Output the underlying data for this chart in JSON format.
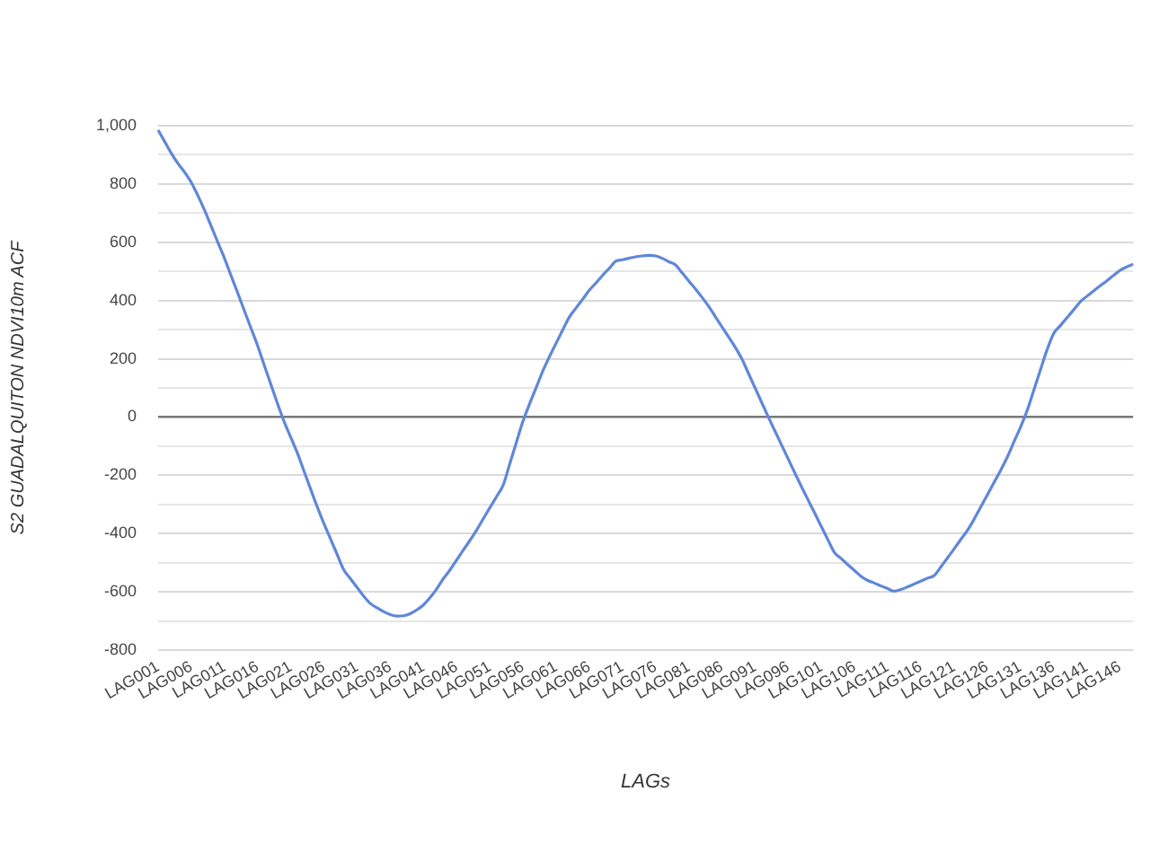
{
  "chart_data": {
    "type": "line",
    "xlabel": "LAGs",
    "ylabel": "S2 GUADALQUITON NDVI10m ACF",
    "categories": [
      "LAG001",
      null,
      null,
      null,
      null,
      "LAG006",
      null,
      null,
      null,
      null,
      "LAG011",
      null,
      null,
      null,
      null,
      "LAG016",
      null,
      null,
      null,
      null,
      "LAG021",
      null,
      null,
      null,
      null,
      "LAG026",
      null,
      null,
      null,
      null,
      "LAG031",
      null,
      null,
      null,
      null,
      "LAG036",
      null,
      null,
      null,
      null,
      "LAG041",
      null,
      null,
      null,
      null,
      "LAG046",
      null,
      null,
      null,
      null,
      "LAG051",
      null,
      null,
      null,
      null,
      "LAG056",
      null,
      null,
      null,
      null,
      "LAG061",
      null,
      null,
      null,
      null,
      "LAG066",
      null,
      null,
      null,
      null,
      "LAG071",
      null,
      null,
      null,
      null,
      "LAG076",
      null,
      null,
      null,
      null,
      "LAG081",
      null,
      null,
      null,
      null,
      "LAG086",
      null,
      null,
      null,
      null,
      "LAG091",
      null,
      null,
      null,
      null,
      "LAG096",
      null,
      null,
      null,
      null,
      "LAG101",
      null,
      null,
      null,
      null,
      "LAG106",
      null,
      null,
      null,
      null,
      "LAG111",
      null,
      null,
      null,
      null,
      "LAG116",
      null,
      null,
      null,
      null,
      "LAG121",
      null,
      null,
      null,
      null,
      "LAG126",
      null,
      null,
      null,
      null,
      "LAG131",
      null,
      null,
      null,
      null,
      "LAG136",
      null,
      null,
      null,
      null,
      "LAG141",
      null,
      null,
      null,
      null,
      "LAG146",
      null,
      null
    ],
    "series": [
      {
        "color": "#5f87d9",
        "values": [
          985,
          945,
          905,
          870,
          840,
          805,
          760,
          710,
          655,
          600,
          545,
          485,
          426,
          365,
          305,
          245,
          178,
          112,
          46,
          -16,
          -70,
          -124,
          -186,
          -248,
          -309,
          -366,
          -419,
          -472,
          -525,
          -555,
          -585,
          -615,
          -640,
          -655,
          -668,
          -678,
          -683,
          -682,
          -675,
          -662,
          -645,
          -620,
          -590,
          -555,
          -525,
          -491,
          -457,
          -424,
          -389,
          -350,
          -312,
          -274,
          -235,
          -162,
          -88,
          -15,
          45,
          101,
          158,
          207,
          253,
          299,
          343,
          374,
          404,
          435,
          460,
          486,
          510,
          535,
          540,
          545,
          550,
          553,
          555,
          553,
          545,
          533,
          522,
          495,
          467,
          440,
          411,
          380,
          345,
          310,
          275,
          240,
          200,
          150,
          100,
          50,
          0,
          -48,
          -96,
          -144,
          -192,
          -239,
          -285,
          -330,
          -376,
          -422,
          -466,
          -486,
          -507,
          -527,
          -547,
          -561,
          -570,
          -580,
          -589,
          -598,
          -592,
          -583,
          -573,
          -563,
          -553,
          -544,
          -515,
          -484,
          -453,
          -421,
          -390,
          -352,
          -310,
          -268,
          -226,
          -184,
          -139,
          -87,
          -36,
          21,
          90,
          160,
          229,
          286,
          313,
          340,
          367,
          395,
          414,
          432,
          450,
          467,
          485,
          503,
          515,
          525
        ]
      }
    ],
    "ylim": [
      -800,
      1000
    ],
    "yticks": [
      -800,
      {
        "value": -700,
        "label": null
      },
      -600,
      {
        "value": -500,
        "label": null
      },
      -400,
      {
        "value": -300,
        "label": null
      },
      -200,
      {
        "value": -100,
        "label": null
      },
      0,
      {
        "value": 100,
        "label": null
      },
      200,
      {
        "value": 300,
        "label": null
      },
      400,
      {
        "value": 500,
        "label": null
      },
      600,
      {
        "value": 700,
        "label": null
      },
      800,
      {
        "value": 900,
        "label": null
      },
      {
        "value": 1000,
        "label": "1,000"
      }
    ],
    "grid": "y",
    "legend": false,
    "marker": "none",
    "line_style": "solid"
  }
}
